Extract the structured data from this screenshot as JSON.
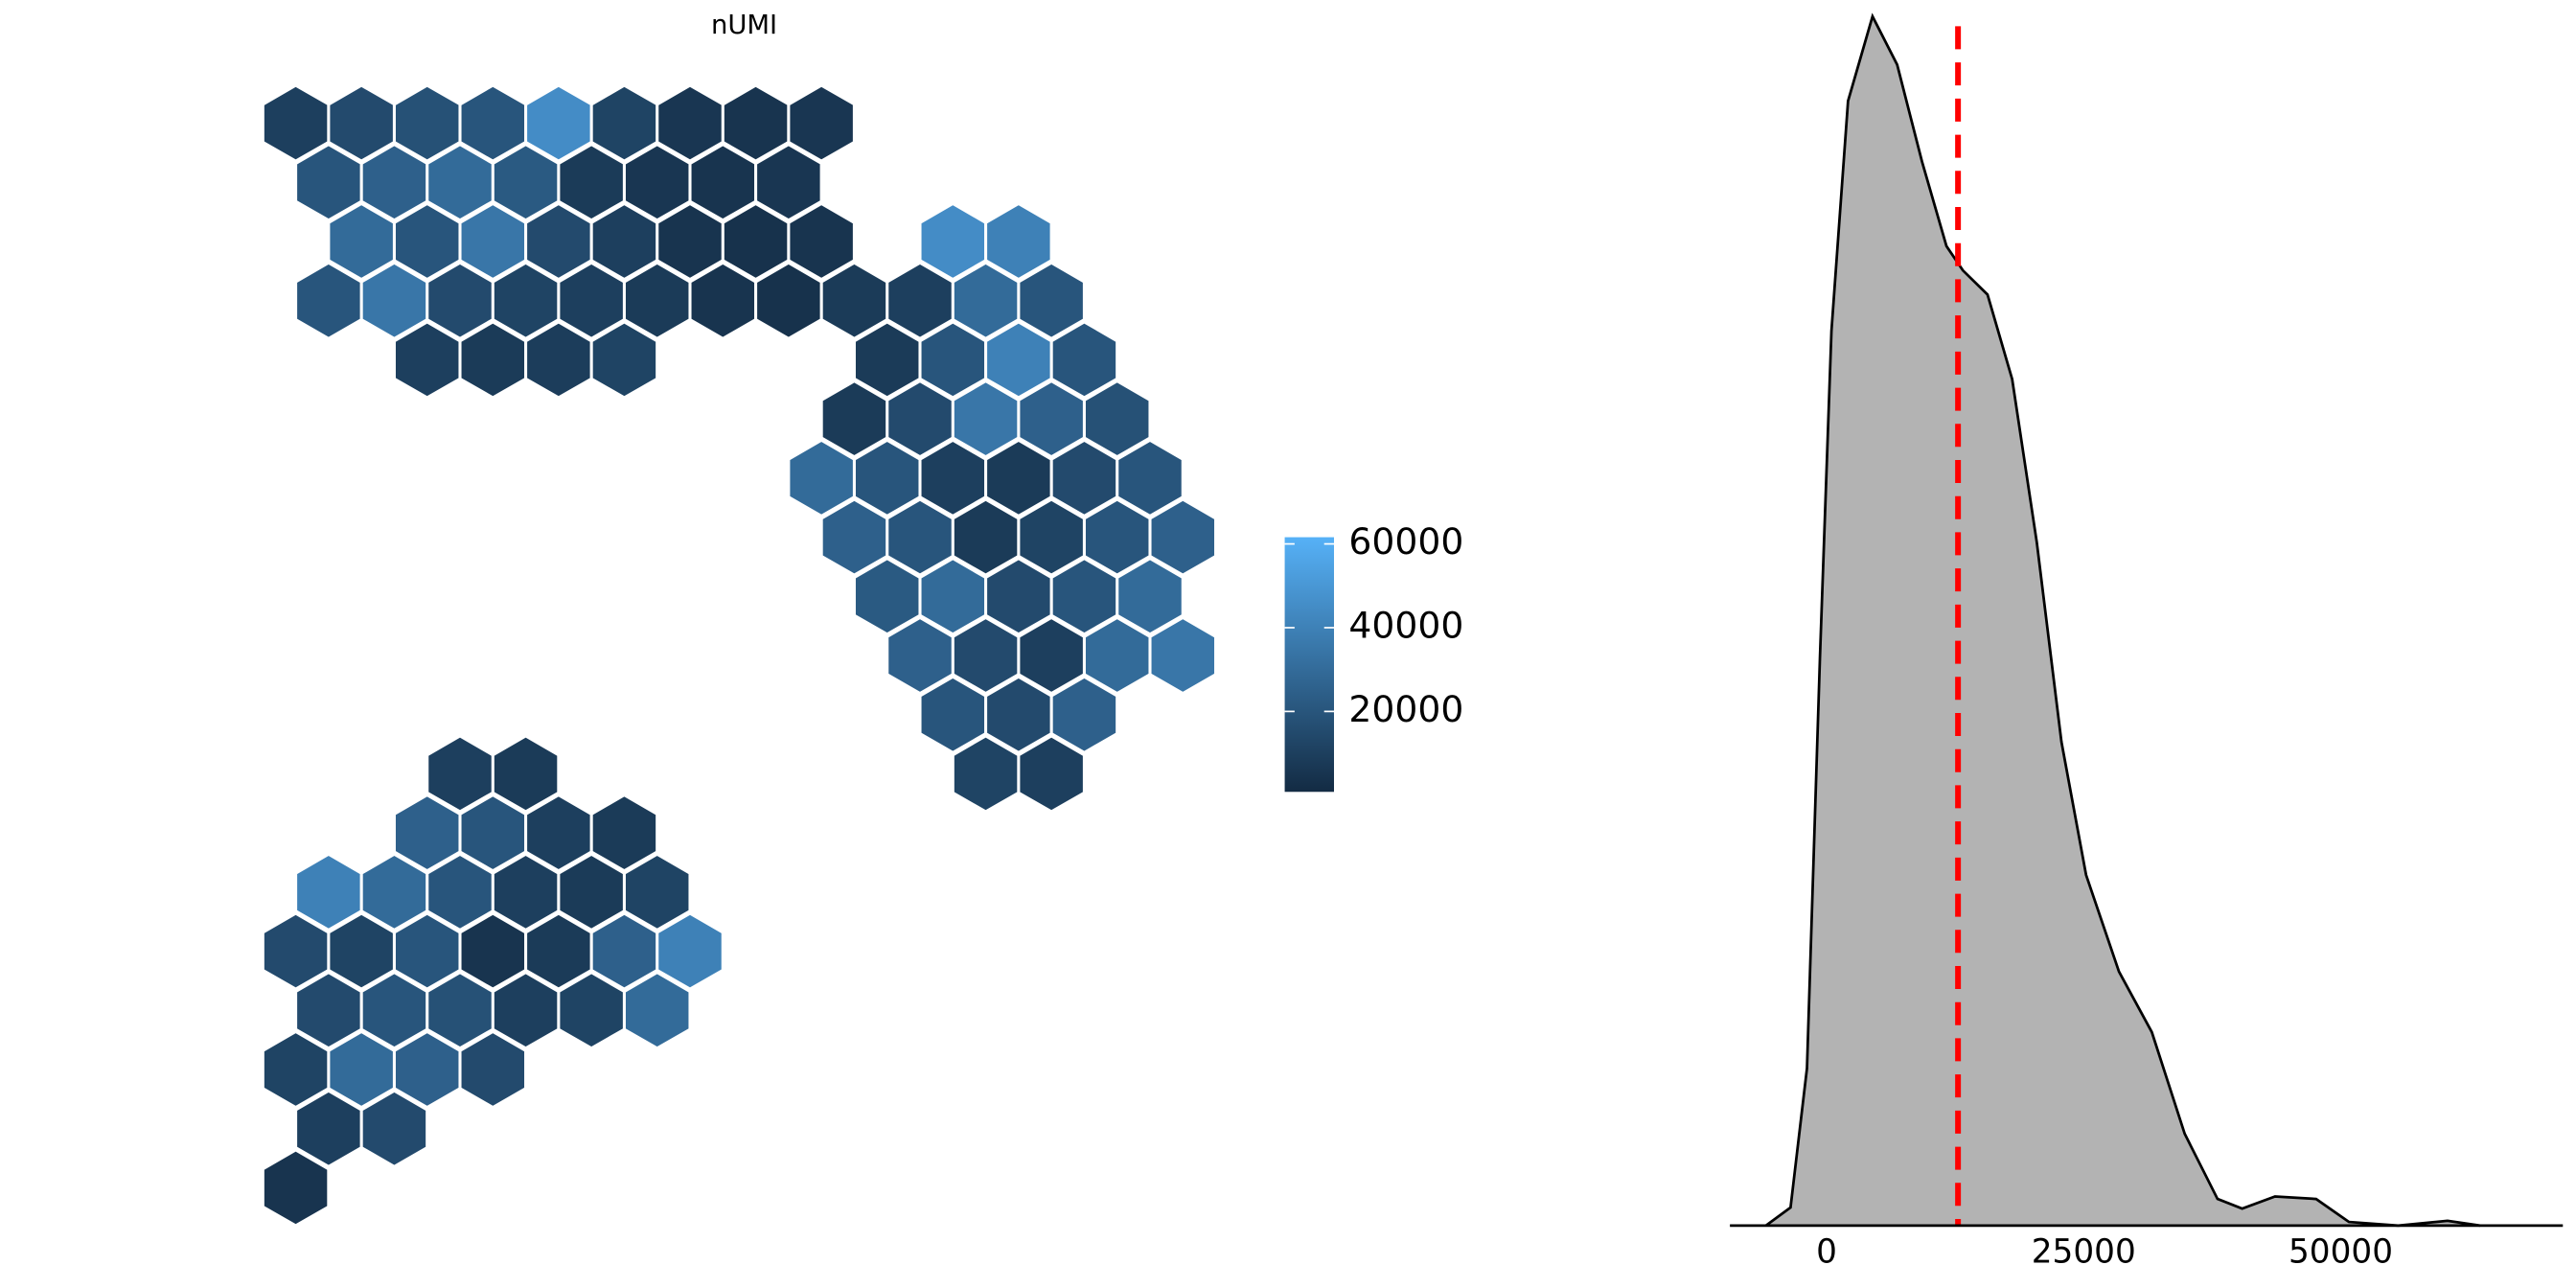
{
  "chart_data": [
    {
      "type": "spatial-hex",
      "title": "nUMI",
      "low_color": "#132B43",
      "high_color": "#56B1F7",
      "clim": [
        800,
        61600
      ],
      "cticks": [
        20000,
        40000,
        60000
      ],
      "grid": [
        [
          10000,
          15000,
          18000,
          20000,
          45000,
          12000,
          6000,
          5000,
          6000,
          null,
          null,
          null,
          null,
          null
        ],
        [
          20000,
          25000,
          30000,
          22000,
          8000,
          6000,
          5000,
          6000,
          null,
          null,
          null,
          null,
          null,
          null
        ],
        [
          null,
          30000,
          20000,
          35000,
          15000,
          10000,
          5000,
          4000,
          5000,
          null,
          45000,
          40000,
          null,
          null
        ],
        [
          20000,
          35000,
          15000,
          12000,
          10000,
          8000,
          5000,
          4000,
          8000,
          10000,
          30000,
          20000,
          null,
          null
        ],
        [
          null,
          null,
          10000,
          8000,
          9000,
          12000,
          null,
          null,
          null,
          8000,
          20000,
          40000,
          20000,
          null
        ],
        [
          null,
          null,
          null,
          null,
          null,
          null,
          null,
          null,
          8000,
          15000,
          35000,
          25000,
          18000,
          null
        ],
        [
          null,
          null,
          null,
          null,
          null,
          null,
          null,
          null,
          30000,
          20000,
          10000,
          8000,
          15000,
          20000
        ],
        [
          null,
          null,
          null,
          null,
          null,
          null,
          null,
          null,
          25000,
          20000,
          8000,
          12000,
          20000,
          25000
        ],
        [
          null,
          null,
          null,
          null,
          null,
          null,
          null,
          null,
          null,
          22000,
          30000,
          15000,
          20000,
          30000
        ],
        [
          null,
          null,
          null,
          null,
          null,
          null,
          null,
          null,
          null,
          25000,
          15000,
          10000,
          30000,
          35000
        ],
        [
          null,
          null,
          null,
          null,
          null,
          null,
          null,
          null,
          null,
          null,
          20000,
          15000,
          25000,
          null
        ],
        [
          null,
          null,
          10000,
          8000,
          null,
          null,
          null,
          null,
          null,
          null,
          12000,
          10000,
          null,
          null
        ],
        [
          null,
          null,
          25000,
          20000,
          10000,
          8000,
          null,
          null,
          null,
          null,
          null,
          null,
          null,
          null
        ],
        [
          40000,
          30000,
          20000,
          10000,
          8000,
          12000,
          null,
          null,
          null,
          null,
          null,
          null,
          null,
          null
        ],
        [
          15000,
          12000,
          20000,
          5000,
          8000,
          25000,
          40000,
          null,
          null,
          null,
          null,
          null,
          null,
          null
        ],
        [
          15000,
          20000,
          18000,
          10000,
          12000,
          30000,
          null,
          null,
          null,
          null,
          null,
          null,
          null,
          null
        ],
        [
          12000,
          30000,
          25000,
          15000,
          null,
          null,
          null,
          null,
          null,
          null,
          null,
          null,
          null,
          null
        ],
        [
          10000,
          15000,
          null,
          null,
          null,
          null,
          null,
          null,
          null,
          null,
          null,
          null,
          null,
          null
        ],
        [
          5000,
          null,
          null,
          null,
          null,
          null,
          null,
          null,
          null,
          null,
          null,
          null,
          null,
          null
        ]
      ]
    },
    {
      "type": "density",
      "x": [
        -5900,
        -3500,
        -1900,
        -640,
        480,
        2080,
        4470,
        6870,
        9270,
        11660,
        13260,
        15650,
        18050,
        20450,
        22840,
        25240,
        28430,
        31630,
        34820,
        38020,
        40420,
        43610,
        47600,
        50800,
        55590,
        60380,
        63570
      ],
      "y": [
        0,
        0.015,
        0.13,
        0.47,
        0.74,
        0.93,
        1.0,
        0.96,
        0.88,
        0.81,
        0.79,
        0.77,
        0.7,
        0.565,
        0.4,
        0.29,
        0.21,
        0.16,
        0.076,
        0.022,
        0.014,
        0.024,
        0.022,
        0.003,
        0,
        0.004,
        0
      ],
      "color": "#b3b3b3",
      "line_color": "#000000",
      "vline": 12780,
      "vline_color": "#ff0000",
      "xlim": [
        -9400,
        71600
      ],
      "ylim": [
        0,
        1.0
      ],
      "xticks": [
        0,
        25000,
        50000
      ]
    }
  ]
}
